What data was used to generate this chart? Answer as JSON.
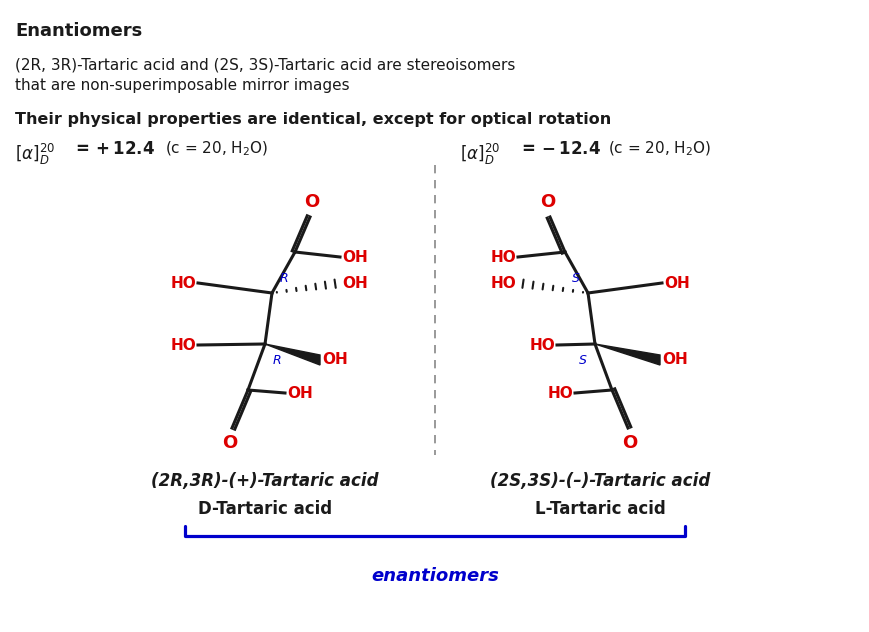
{
  "title": "Enantiomers",
  "subtitle_line1": "(2R, 3R)-Tartaric acid and (2S, 3S)-Tartaric acid are stereoisomers",
  "subtitle_line2": "that are non-superimposable mirror images",
  "bold_line": "Their physical properties are identical, except for optical rotation",
  "label_left_italic": "(2R,3R)-(+)-Tartaric acid",
  "label_right_italic": "(2S,3S)-(–)-Tartaric acid",
  "label_left_bold": "D-Tartaric acid",
  "label_right_bold": "L-Tartaric acid",
  "enantiomers_label": "enantiomers",
  "red": "#dd0000",
  "blue": "#0000cc",
  "black": "#1a1a1a",
  "bg": "#ffffff"
}
